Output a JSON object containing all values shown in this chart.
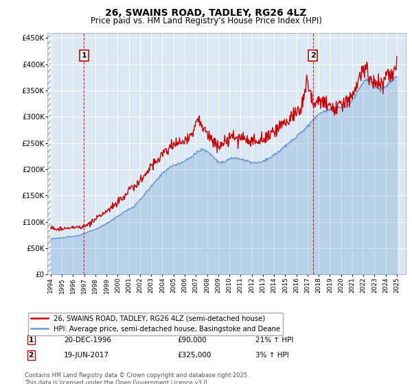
{
  "title": "26, SWAINS ROAD, TADLEY, RG26 4LZ",
  "subtitle": "Price paid vs. HM Land Registry's House Price Index (HPI)",
  "legend_line1": "26, SWAINS ROAD, TADLEY, RG26 4LZ (semi-detached house)",
  "legend_line2": "HPI: Average price, semi-detached house, Basingstoke and Deane",
  "annotation1_label": "1",
  "annotation1_date": "20-DEC-1996",
  "annotation1_price": "£90,000",
  "annotation1_hpi": "21% ↑ HPI",
  "annotation2_label": "2",
  "annotation2_date": "19-JUN-2017",
  "annotation2_price": "£325,000",
  "annotation2_hpi": "3% ↑ HPI",
  "footer": "Contains HM Land Registry data © Crown copyright and database right 2025.\nThis data is licensed under the Open Government Licence v3.0.",
  "sale1_year": 1996.97,
  "sale1_price": 90000,
  "sale2_year": 2017.47,
  "sale2_price": 325000,
  "bg_color": "#dce9f5",
  "grid_color": "#ffffff",
  "red_color": "#cc0000",
  "blue_color": "#6699cc",
  "ylim": [
    0,
    460000
  ],
  "xlim_start": 1993.7,
  "xlim_end": 2025.8,
  "hpi_years": [
    1994.0,
    1994.5,
    1995.0,
    1995.5,
    1996.0,
    1996.5,
    1997.0,
    1997.5,
    1998.0,
    1998.5,
    1999.0,
    1999.5,
    2000.0,
    2000.5,
    2001.0,
    2001.5,
    2002.0,
    2002.5,
    2003.0,
    2003.5,
    2004.0,
    2004.5,
    2005.0,
    2005.5,
    2006.0,
    2006.5,
    2007.0,
    2007.5,
    2008.0,
    2008.5,
    2009.0,
    2009.5,
    2010.0,
    2010.5,
    2011.0,
    2011.5,
    2012.0,
    2012.5,
    2013.0,
    2013.5,
    2014.0,
    2014.5,
    2015.0,
    2015.5,
    2016.0,
    2016.5,
    2017.0,
    2017.5,
    2018.0,
    2018.5,
    2019.0,
    2019.5,
    2020.0,
    2020.5,
    2021.0,
    2021.5,
    2022.0,
    2022.5,
    2023.0,
    2023.5,
    2024.0,
    2024.5,
    2025.0
  ],
  "hpi_values": [
    68000,
    69000,
    70000,
    71500,
    72500,
    74000,
    78000,
    82000,
    86000,
    91000,
    97000,
    104000,
    111000,
    118000,
    124000,
    130000,
    142000,
    155000,
    168000,
    180000,
    193000,
    202000,
    208000,
    210000,
    216000,
    222000,
    232000,
    238000,
    235000,
    225000,
    215000,
    213000,
    220000,
    222000,
    220000,
    216000,
    213000,
    212000,
    215000,
    220000,
    228000,
    235000,
    244000,
    253000,
    262000,
    272000,
    282000,
    295000,
    305000,
    310000,
    315000,
    318000,
    318000,
    320000,
    330000,
    350000,
    368000,
    370000,
    358000,
    352000,
    358000,
    368000,
    378000
  ],
  "red_years": [
    1994.0,
    1994.3,
    1994.6,
    1994.9,
    1995.2,
    1995.5,
    1995.8,
    1996.2,
    1996.6,
    1996.97,
    1997.3,
    1997.8,
    1998.2,
    1998.7,
    1999.1,
    1999.6,
    2000.1,
    2000.5,
    2001.0,
    2001.4,
    2001.9,
    2002.3,
    2002.8,
    2003.2,
    2003.7,
    2004.1,
    2004.6,
    2005.0,
    2005.4,
    2005.8,
    2006.2,
    2006.6,
    2007.0,
    2007.3,
    2007.6,
    2008.0,
    2008.4,
    2008.8,
    2009.2,
    2009.5,
    2009.8,
    2010.2,
    2010.6,
    2011.0,
    2011.4,
    2011.8,
    2012.1,
    2012.5,
    2012.9,
    2013.3,
    2013.7,
    2014.1,
    2014.5,
    2014.9,
    2015.3,
    2015.7,
    2016.1,
    2016.5,
    2016.9,
    2017.47,
    2017.8,
    2018.1,
    2018.4,
    2018.7,
    2019.0,
    2019.3,
    2019.6,
    2019.9,
    2020.2,
    2020.5,
    2020.8,
    2021.1,
    2021.4,
    2021.7,
    2022.0,
    2022.3,
    2022.6,
    2022.9,
    2023.2,
    2023.5,
    2023.8,
    2024.1,
    2024.4,
    2024.7,
    2025.0
  ],
  "red_values": [
    88000,
    87000,
    86500,
    87000,
    87500,
    88000,
    88500,
    89000,
    89500,
    90000,
    95000,
    102000,
    108000,
    116000,
    122000,
    130000,
    140000,
    150000,
    158000,
    165000,
    175000,
    185000,
    200000,
    213000,
    220000,
    232000,
    240000,
    248000,
    253000,
    250000,
    260000,
    270000,
    285000,
    292000,
    278000,
    268000,
    258000,
    250000,
    245000,
    248000,
    252000,
    260000,
    262000,
    260000,
    258000,
    255000,
    253000,
    252000,
    255000,
    260000,
    265000,
    272000,
    280000,
    290000,
    295000,
    302000,
    308000,
    318000,
    370000,
    325000,
    330000,
    332000,
    328000,
    322000,
    320000,
    318000,
    320000,
    322000,
    325000,
    330000,
    338000,
    345000,
    358000,
    370000,
    390000,
    388000,
    375000,
    368000,
    362000,
    360000,
    365000,
    378000,
    385000,
    395000,
    400000
  ]
}
